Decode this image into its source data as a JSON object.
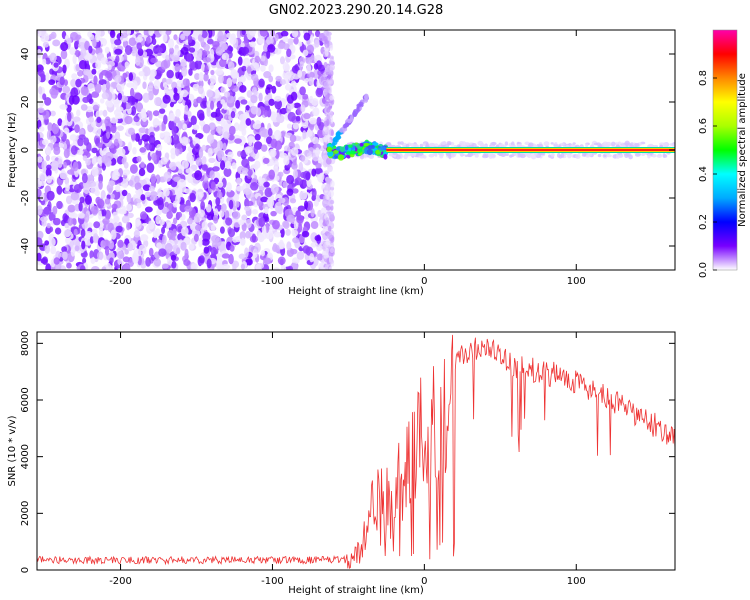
{
  "title": "GN02.2023.290.20.14.G28",
  "chart_data": [
    {
      "type": "heatmap",
      "xlabel": "Height of straight line (km)",
      "ylabel": "Frequency (Hz)",
      "xlim": [
        -255,
        165
      ],
      "ylim": [
        -50,
        50
      ],
      "x_ticks": [
        -200,
        -100,
        0,
        100
      ],
      "y_ticks": [
        -40,
        -20,
        0,
        20,
        40
      ],
      "noise_region_x": [
        -255,
        -63
      ],
      "signal_line": {
        "x_start": -63,
        "x_end": 165,
        "frequency": 0
      },
      "colorbar": {
        "label": "Normalized spectral amplitude",
        "range": [
          0,
          1
        ],
        "ticks": [
          0.0,
          0.2,
          0.4,
          0.6,
          0.8
        ],
        "colormap": [
          "#ffffff",
          "#7700ff",
          "#0000ff",
          "#00aaff",
          "#00ffff",
          "#00ff00",
          "#aaff00",
          "#ffff00",
          "#ff8800",
          "#ff0000",
          "#ff00aa"
        ]
      }
    },
    {
      "type": "line",
      "xlabel": "Height of straight line (km)",
      "ylabel": "SNR (10 * v/v)",
      "xlim": [
        -255,
        165
      ],
      "ylim": [
        0,
        8400
      ],
      "x_ticks": [
        -200,
        -100,
        0,
        100
      ],
      "y_ticks": [
        0,
        2000,
        4000,
        6000,
        8000
      ],
      "color": "#ee3333",
      "series": [
        {
          "x": [
            -255,
            -200,
            -150,
            -100,
            -60,
            -50,
            -42,
            -35,
            -25,
            -15,
            -5,
            5,
            15,
            25,
            35,
            45,
            55,
            75,
            95,
            115,
            135,
            155,
            165
          ],
          "values": [
            300,
            290,
            300,
            300,
            300,
            320,
            700,
            2000,
            2900,
            3300,
            4300,
            5300,
            6600,
            7600,
            7800,
            7700,
            7300,
            7000,
            6800,
            6200,
            5600,
            5000,
            4700
          ]
        }
      ]
    }
  ],
  "sample_count": 700
}
